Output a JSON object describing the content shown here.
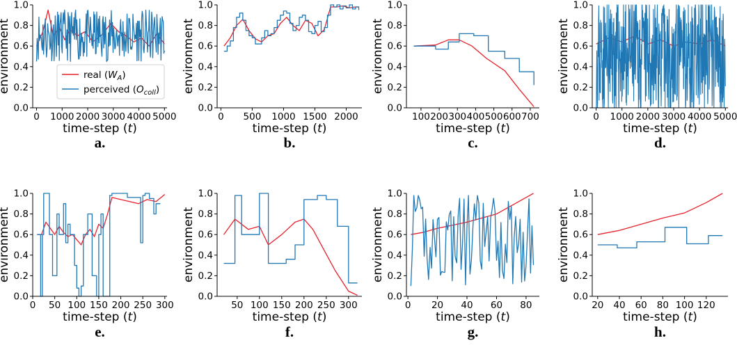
{
  "colors": {
    "real": "#e8202a",
    "perceived": "#1f77b4"
  },
  "legend": {
    "real": "real (W_A)",
    "perceived": "perceived (O_coll)"
  },
  "chart_data": [
    {
      "type": "line",
      "label": "a.",
      "xlabel": "time-step (t)",
      "ylabel": "environment",
      "xlim": [
        -150,
        5100
      ],
      "ylim": [
        0,
        1
      ],
      "xticks": [
        0,
        1000,
        2000,
        3000,
        4000,
        5000
      ],
      "yticks": [
        0,
        0.2,
        0.4,
        0.6,
        0.8,
        1.0
      ],
      "series": [
        {
          "name": "real",
          "x": [
            0,
            250,
            450,
            650,
            900,
            1100,
            1300,
            1600,
            1900,
            2200,
            2600,
            2900,
            3200,
            3500,
            3800,
            4100,
            4400,
            4700,
            5000
          ],
          "y": [
            0.6,
            0.74,
            0.95,
            0.7,
            0.78,
            0.66,
            0.76,
            0.7,
            0.74,
            0.64,
            0.72,
            0.82,
            0.74,
            0.7,
            0.64,
            0.68,
            0.6,
            0.72,
            0.62
          ]
        },
        {
          "name": "perceived",
          "generated": true,
          "seed": 11,
          "n": 220,
          "base": 0.7,
          "amp": 0.25,
          "min": 0.22,
          "max": 1.0,
          "x0": 0,
          "x1": 5000
        }
      ]
    },
    {
      "type": "line",
      "label": "b.",
      "xlabel": "time-step (t)",
      "ylabel": "environment",
      "xlim": [
        -60,
        2250
      ],
      "ylim": [
        0,
        1
      ],
      "xticks": [
        0,
        500,
        1000,
        1500,
        2000
      ],
      "yticks": [
        0,
        0.2,
        0.4,
        0.6,
        0.8,
        1.0
      ],
      "series": [
        {
          "name": "real",
          "x": [
            50,
            150,
            250,
            350,
            450,
            550,
            650,
            750,
            850,
            950,
            1050,
            1150,
            1250,
            1350,
            1450,
            1550,
            1650,
            1750,
            1850,
            1950,
            2050,
            2150,
            2200
          ],
          "y": [
            0.6,
            0.68,
            0.8,
            0.86,
            0.75,
            0.67,
            0.64,
            0.7,
            0.72,
            0.82,
            0.88,
            0.8,
            0.75,
            0.85,
            0.82,
            0.7,
            0.76,
            0.98,
            0.98,
            0.99,
            0.97,
            0.98,
            0.98
          ]
        },
        {
          "name": "perceived",
          "x": [
            50,
            100,
            150,
            200,
            250,
            300,
            350,
            400,
            450,
            500,
            550,
            600,
            650,
            700,
            750,
            800,
            850,
            900,
            950,
            1000,
            1050,
            1100,
            1150,
            1200,
            1250,
            1300,
            1350,
            1400,
            1450,
            1500,
            1550,
            1600,
            1650,
            1700,
            1750,
            1800,
            1850,
            1900,
            1950,
            2000,
            2050,
            2100,
            2150,
            2200
          ],
          "y": [
            0.55,
            0.6,
            0.65,
            0.78,
            0.88,
            0.92,
            0.85,
            0.75,
            0.7,
            0.68,
            0.62,
            0.62,
            0.68,
            0.75,
            0.7,
            0.72,
            0.78,
            0.85,
            0.9,
            0.94,
            0.92,
            0.82,
            0.75,
            0.8,
            0.88,
            0.9,
            0.85,
            0.74,
            0.72,
            0.8,
            0.84,
            0.74,
            0.78,
            0.9,
            1.0,
            0.98,
            1.0,
            0.96,
            0.99,
            0.97,
            1.0,
            0.96,
            0.98,
            0.95
          ],
          "step": true
        }
      ]
    },
    {
      "type": "line",
      "label": "c.",
      "xlabel": "time-step (t)",
      "ylabel": "environment",
      "xlim": [
        20,
        750
      ],
      "ylim": [
        0,
        1
      ],
      "xticks": [
        100,
        200,
        300,
        400,
        500,
        600,
        700
      ],
      "yticks": [
        0,
        0.2,
        0.4,
        0.6,
        0.8,
        1.0
      ],
      "series": [
        {
          "name": "real",
          "x": [
            60,
            180,
            250,
            310,
            380,
            460,
            560,
            640,
            720
          ],
          "y": [
            0.6,
            0.61,
            0.66,
            0.66,
            0.6,
            0.48,
            0.36,
            0.18,
            0.01
          ]
        },
        {
          "name": "perceived",
          "x": [
            60,
            180,
            250,
            310,
            390,
            470,
            560,
            640,
            720
          ],
          "y": [
            0.6,
            0.57,
            0.64,
            0.72,
            0.7,
            0.55,
            0.48,
            0.35,
            0.22
          ],
          "step": true
        }
      ]
    },
    {
      "type": "line",
      "label": "d.",
      "xlabel": "time-step (t)",
      "ylabel": "environment",
      "xlim": [
        -150,
        5100
      ],
      "ylim": [
        0,
        1
      ],
      "xticks": [
        0,
        1000,
        2000,
        3000,
        4000,
        5000
      ],
      "yticks": [
        0,
        0.2,
        0.4,
        0.6,
        0.8,
        1.0
      ],
      "series": [
        {
          "name": "real",
          "x": [
            0,
            500,
            1000,
            1500,
            2000,
            2500,
            3000,
            3500,
            4000,
            4500,
            5000
          ],
          "y": [
            0.62,
            0.68,
            0.64,
            0.7,
            0.62,
            0.66,
            0.6,
            0.64,
            0.62,
            0.66,
            0.6
          ]
        },
        {
          "name": "perceived",
          "generated": true,
          "seed": 23,
          "n": 520,
          "base": 0.5,
          "amp": 0.55,
          "min": 0.0,
          "max": 1.0,
          "x0": 0,
          "x1": 5000
        }
      ]
    },
    {
      "type": "line",
      "label": "e.",
      "xlabel": "time-step (t)",
      "ylabel": "environment",
      "xlim": [
        0,
        305
      ],
      "ylim": [
        0,
        1
      ],
      "xticks": [
        0,
        50,
        100,
        150,
        200,
        250,
        300
      ],
      "yticks": [
        0,
        0.2,
        0.4,
        0.6,
        0.8,
        1.0
      ],
      "series": [
        {
          "name": "real",
          "x": [
            10,
            20,
            30,
            40,
            50,
            60,
            70,
            80,
            90,
            100,
            110,
            120,
            130,
            140,
            150,
            160,
            170,
            180,
            200,
            220,
            240,
            260,
            280,
            300
          ],
          "y": [
            0.6,
            0.6,
            0.72,
            0.66,
            0.6,
            0.68,
            0.62,
            0.58,
            0.6,
            0.55,
            0.5,
            0.6,
            0.65,
            0.58,
            0.7,
            0.66,
            0.8,
            0.96,
            0.94,
            0.92,
            0.9,
            0.94,
            0.92,
            0.99
          ]
        },
        {
          "name": "perceived",
          "x": [
            10,
            18,
            22,
            25,
            30,
            38,
            45,
            55,
            60,
            70,
            75,
            80,
            85,
            95,
            100,
            105,
            110,
            115,
            125,
            135,
            145,
            150,
            155,
            160,
            175,
            180,
            200,
            215,
            245,
            250,
            255,
            265,
            275,
            280,
            290
          ],
          "y": [
            0.6,
            0.0,
            0.6,
            1.0,
            1.0,
            0.6,
            0.2,
            0.8,
            0.6,
            0.9,
            0.52,
            0.7,
            0.6,
            0.3,
            0.08,
            0.0,
            0.1,
            0.6,
            0.8,
            0.2,
            0.0,
            0.6,
            0.8,
            0.0,
            0.98,
            1.0,
            1.0,
            0.96,
            0.52,
            0.98,
            1.0,
            0.95,
            0.8,
            0.9,
            0.9
          ],
          "step": true
        }
      ]
    },
    {
      "type": "line",
      "label": "f.",
      "xlabel": "time-step (t)",
      "ylabel": "environment",
      "xlim": [
        5,
        330
      ],
      "ylim": [
        0,
        1
      ],
      "xticks": [
        50,
        100,
        150,
        200,
        250,
        300
      ],
      "yticks": [
        0,
        0.2,
        0.4,
        0.6,
        0.8,
        1.0
      ],
      "series": [
        {
          "name": "real",
          "x": [
            20,
            45,
            75,
            100,
            120,
            150,
            180,
            200,
            220,
            245,
            270,
            300,
            320
          ],
          "y": [
            0.6,
            0.75,
            0.65,
            0.68,
            0.5,
            0.6,
            0.72,
            0.75,
            0.65,
            0.45,
            0.25,
            0.05,
            0.01
          ]
        },
        {
          "name": "perceived",
          "x": [
            20,
            45,
            60,
            80,
            100,
            120,
            140,
            160,
            180,
            200,
            220,
            230,
            250,
            275,
            300,
            320
          ],
          "y": [
            0.32,
            0.98,
            0.6,
            0.6,
            1.0,
            0.32,
            0.32,
            0.36,
            0.5,
            0.94,
            0.94,
            0.98,
            0.94,
            0.68,
            0.13,
            0.13
          ],
          "step": true
        }
      ]
    },
    {
      "type": "line",
      "label": "g.",
      "xlabel": "time-step (t)",
      "ylabel": "environment",
      "xlim": [
        -1,
        89
      ],
      "ylim": [
        0,
        1
      ],
      "xticks": [
        0,
        20,
        40,
        60,
        80
      ],
      "yticks": [
        0,
        0.2,
        0.4,
        0.6,
        0.8,
        1.0
      ],
      "series": [
        {
          "name": "real",
          "x": [
            2,
            10,
            20,
            30,
            40,
            50,
            60,
            65,
            70,
            75,
            80,
            85
          ],
          "y": [
            0.6,
            0.62,
            0.66,
            0.69,
            0.72,
            0.76,
            0.8,
            0.84,
            0.88,
            0.92,
            0.96,
            1.0
          ]
        },
        {
          "name": "perceived",
          "generated": true,
          "seed": 41,
          "n": 84,
          "base": 0.55,
          "amp": 0.45,
          "min": 0.02,
          "max": 0.98,
          "x0": 2,
          "x1": 85
        }
      ]
    },
    {
      "type": "line",
      "label": "h.",
      "xlabel": "time-step (t)",
      "ylabel": "environment",
      "xlim": [
        15,
        140
      ],
      "ylim": [
        0,
        1
      ],
      "xticks": [
        20,
        40,
        60,
        80,
        100,
        120
      ],
      "yticks": [
        0,
        0.2,
        0.4,
        0.6,
        0.8,
        1.0
      ],
      "series": [
        {
          "name": "real",
          "x": [
            20,
            40,
            60,
            80,
            100,
            120,
            135
          ],
          "y": [
            0.6,
            0.64,
            0.7,
            0.76,
            0.81,
            0.91,
            1.0
          ]
        },
        {
          "name": "perceived",
          "x": [
            20,
            38,
            56,
            82,
            102,
            122,
            135
          ],
          "y": [
            0.5,
            0.47,
            0.53,
            0.67,
            0.51,
            0.59,
            0.59
          ],
          "step": true
        }
      ]
    }
  ]
}
